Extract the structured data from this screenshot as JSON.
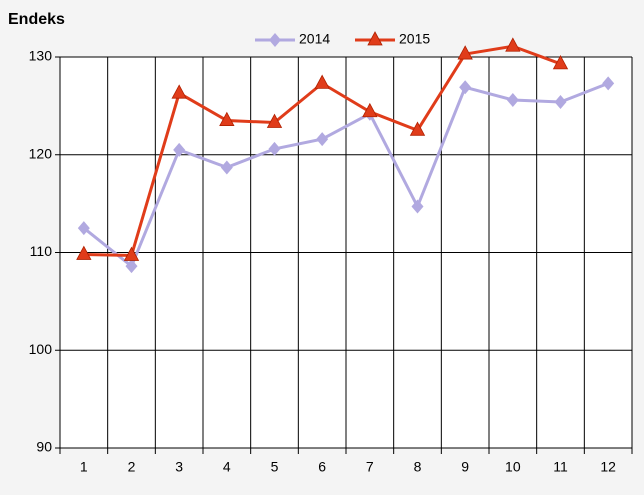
{
  "chart_data": {
    "type": "line",
    "title": "Endeks",
    "categories": [
      "1",
      "2",
      "3",
      "4",
      "5",
      "6",
      "7",
      "8",
      "9",
      "10",
      "11",
      "12"
    ],
    "series": [
      {
        "name": "2014",
        "color": "#b1a9e0",
        "marker": "diamond",
        "values": [
          112.5,
          108.6,
          120.5,
          118.7,
          120.6,
          121.6,
          124.2,
          114.7,
          126.9,
          125.6,
          125.4,
          127.3
        ]
      },
      {
        "name": "2015",
        "color": "#e03c1a",
        "marker": "triangle",
        "values": [
          109.8,
          109.7,
          126.3,
          123.5,
          123.3,
          127.3,
          124.4,
          122.5,
          130.3,
          131.1,
          129.3,
          null
        ]
      }
    ],
    "ylim": [
      90,
      130
    ],
    "yticks": [
      90,
      100,
      110,
      120,
      130
    ],
    "grid": true,
    "legend": "top"
  }
}
